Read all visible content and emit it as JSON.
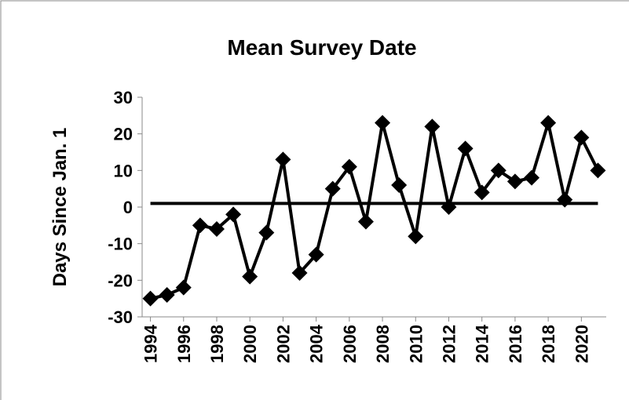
{
  "chart_data": {
    "type": "line",
    "title": "Mean Survey Date",
    "y_label": "Days Since Jan. 1",
    "x": [
      1994,
      1995,
      1996,
      1997,
      1998,
      1999,
      2000,
      2001,
      2002,
      2003,
      2004,
      2005,
      2006,
      2007,
      2008,
      2009,
      2010,
      2011,
      2012,
      2013,
      2014,
      2015,
      2016,
      2017,
      2018,
      2019,
      2020,
      2021
    ],
    "values": [
      -25,
      -24,
      -22,
      -5,
      -6,
      -2,
      -19,
      -7,
      13,
      -18,
      -13,
      5,
      11,
      -4,
      23,
      6,
      -8,
      22,
      0,
      16,
      4,
      10,
      7,
      8,
      23,
      2,
      19,
      10
    ],
    "color": "#000000",
    "reference_line": 1,
    "xlim": [
      1993.5,
      2021.5
    ],
    "xticks": [
      1994,
      1996,
      1998,
      2000,
      2002,
      2004,
      2006,
      2008,
      2010,
      2012,
      2014,
      2016,
      2018,
      2020
    ],
    "ylim": [
      -30,
      30
    ],
    "yticks": [
      -30,
      -20,
      -10,
      0,
      10,
      20,
      30
    ]
  }
}
